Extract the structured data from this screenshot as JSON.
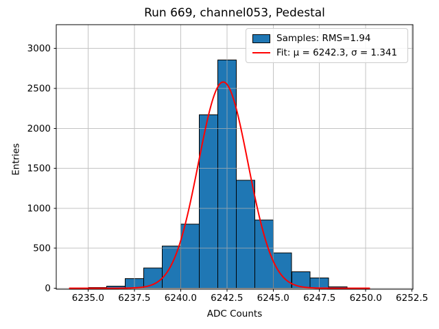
{
  "title": "Run 669, channel053, Pedestal",
  "axes": {
    "xlabel": "ADC Counts",
    "ylabel": "Entries"
  },
  "legend": {
    "samples_label": "Samples: RMS=1.94",
    "fit_label": "Fit: μ = 6242.3, σ = 1.341"
  },
  "colors": {
    "bar_fill": "#1f77b4",
    "bar_edge": "#000000",
    "fit_line": "#ff0000",
    "grid": "#b0b0b0",
    "axes_edge": "#000000",
    "legend_edge": "#cccccc",
    "text": "#000000",
    "background": "#ffffff"
  },
  "chart_data": {
    "type": "bar",
    "subtype": "histogram",
    "title": "Run 669, channel053, Pedestal",
    "xlabel": "ADC Counts",
    "ylabel": "Entries",
    "bin_edges": [
      6234,
      6235,
      6236,
      6237,
      6238,
      6239,
      6240,
      6241,
      6242,
      6243,
      6244,
      6245,
      6246,
      6247,
      6248,
      6249,
      6250
    ],
    "counts": [
      2,
      8,
      25,
      118,
      255,
      528,
      800,
      2170,
      2855,
      1350,
      855,
      440,
      205,
      130,
      18,
      6
    ],
    "series": [
      {
        "name": "Samples: RMS=1.94",
        "type": "histogram"
      },
      {
        "name": "Fit: μ = 6242.3, σ = 1.341",
        "type": "gaussian-curve"
      }
    ],
    "fit": {
      "shape": "gaussian",
      "mu": 6242.3,
      "sigma": 1.341,
      "amplitude": 2580,
      "x_min": 6234,
      "x_max": 6250.2,
      "rms": 1.94
    },
    "x_tick_values": [
      6235.0,
      6237.5,
      6240.0,
      6242.5,
      6245.0,
      6247.5,
      6250.0,
      6252.5
    ],
    "x_tick_labels": [
      "6235.0",
      "6237.5",
      "6240.0",
      "6242.5",
      "6245.0",
      "6247.5",
      "6250.0",
      "6252.5"
    ],
    "y_tick_values": [
      0,
      500,
      1000,
      1500,
      2000,
      2500,
      3000
    ],
    "y_tick_labels": [
      "0",
      "500",
      "1000",
      "1500",
      "2000",
      "2500",
      "3000"
    ],
    "xlim": [
      6233.28,
      6252.55
    ],
    "ylim": [
      -13,
      3297
    ],
    "grid": true,
    "grid_over_bars": true,
    "legend_position": "upper right"
  }
}
